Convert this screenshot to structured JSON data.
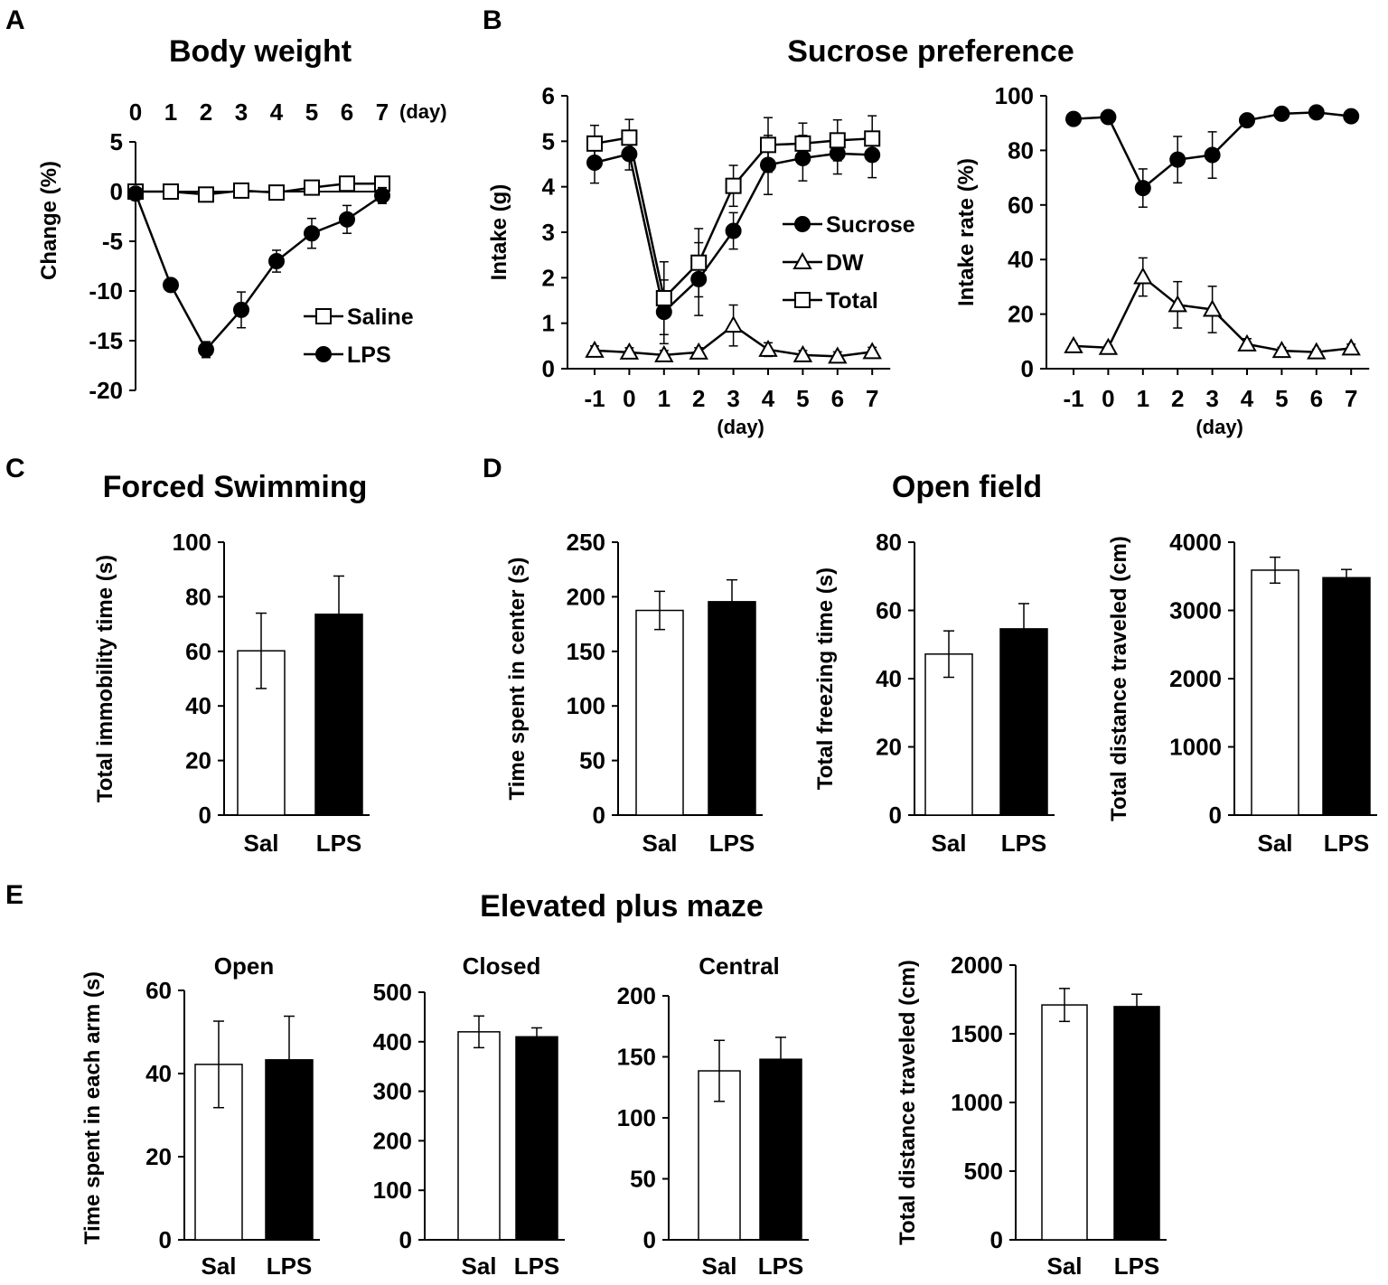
{
  "panel_labels": [
    "A",
    "B",
    "C",
    "D",
    "E"
  ],
  "section_titles": {
    "sucrose": "Sucrose preference",
    "open_field": "Open field",
    "epm": "Elevated plus maze"
  },
  "chart_data": [
    {
      "id": "body_weight",
      "type": "line",
      "title": "Body weight",
      "ylabel": "Change (%)",
      "xlabel": "(day)",
      "x_axis_position": "top",
      "ylim": [
        -20,
        5
      ],
      "yticks": [
        5,
        0,
        -5,
        -10,
        -15,
        -20
      ],
      "x": [
        0,
        1,
        2,
        3,
        4,
        5,
        6,
        7
      ],
      "legend_position": "bottom-right",
      "series": [
        {
          "name": "Saline",
          "marker": "square-open",
          "values": [
            0,
            0,
            -0.3,
            0.1,
            -0.1,
            0.4,
            0.8,
            0.8
          ],
          "errors": [
            0.3,
            0.3,
            0.5,
            0.4,
            0.4,
            0.5,
            0.7,
            0.6
          ]
        },
        {
          "name": "LPS",
          "marker": "circle-filled",
          "values": [
            -0.2,
            -9.4,
            -15.9,
            -11.9,
            -7.0,
            -4.2,
            -2.8,
            -0.4
          ],
          "errors": [
            0.4,
            0.6,
            0.8,
            1.8,
            1.1,
            1.5,
            1.4,
            0.8
          ]
        }
      ]
    },
    {
      "id": "intake",
      "type": "line",
      "ylabel": "Intake (g)",
      "xlabel": "(day)",
      "ylim": [
        0,
        6
      ],
      "yticks": [
        0,
        1,
        2,
        3,
        4,
        5,
        6
      ],
      "x": [
        -1,
        0,
        1,
        2,
        3,
        4,
        5,
        6,
        7
      ],
      "legend_position": "center-right",
      "series": [
        {
          "name": "Sucrose",
          "marker": "circle-filled",
          "values": [
            4.53,
            4.72,
            1.25,
            1.97,
            3.03,
            4.48,
            4.63,
            4.73,
            4.7
          ],
          "errors": [
            0.45,
            0.35,
            0.7,
            0.8,
            0.4,
            0.65,
            0.5,
            0.45,
            0.5
          ]
        },
        {
          "name": "DW",
          "marker": "triangle-open",
          "values": [
            0.4,
            0.36,
            0.3,
            0.36,
            0.95,
            0.42,
            0.3,
            0.27,
            0.37
          ],
          "errors": [
            0.1,
            0.1,
            0.1,
            0.1,
            0.45,
            0.15,
            0.1,
            0.1,
            0.1
          ]
        },
        {
          "name": "Total",
          "marker": "square-open",
          "values": [
            4.95,
            5.08,
            1.55,
            2.33,
            4.02,
            4.92,
            4.95,
            5.02,
            5.06
          ],
          "errors": [
            0.4,
            0.4,
            0.8,
            0.75,
            0.45,
            0.6,
            0.45,
            0.45,
            0.5
          ]
        }
      ]
    },
    {
      "id": "intake_rate",
      "type": "line",
      "ylabel": "Intake rate (%)",
      "xlabel": "(day)",
      "ylim": [
        0,
        100
      ],
      "yticks": [
        0,
        20,
        40,
        60,
        80,
        100
      ],
      "x": [
        -1,
        0,
        1,
        2,
        3,
        4,
        5,
        6,
        7
      ],
      "series": [
        {
          "name": "Sucrose",
          "marker": "circle-filled",
          "values": [
            91.5,
            92.2,
            66.2,
            76.6,
            78.3,
            91,
            93.4,
            93.9,
            92.5
          ],
          "errors": [
            0.8,
            0.8,
            7,
            8.5,
            8.5,
            2,
            1.2,
            1,
            1
          ]
        },
        {
          "name": "DW",
          "marker": "triangle-open",
          "values": [
            8.3,
            7.7,
            33.6,
            23.4,
            21.7,
            9,
            6.6,
            6.1,
            7.5
          ],
          "errors": [
            0.8,
            0.8,
            7,
            8.5,
            8.5,
            2,
            1.2,
            1,
            1.5
          ]
        }
      ]
    },
    {
      "id": "forced_swimming",
      "type": "bar",
      "title": "Forced Swimming",
      "ylabel": "Total immobility time (s)",
      "categories": [
        "Sal",
        "LPS"
      ],
      "values": [
        60.2,
        73.6
      ],
      "errors": [
        13.8,
        14
      ],
      "ylim": [
        0,
        100
      ],
      "yticks": [
        0,
        20,
        40,
        60,
        80,
        100
      ]
    },
    {
      "id": "of_center",
      "type": "bar",
      "ylabel": "Time spent in center (s)",
      "categories": [
        "Sal",
        "LPS"
      ],
      "values": [
        187.5,
        195.5
      ],
      "errors": [
        17.5,
        20
      ],
      "ylim": [
        0,
        250
      ],
      "yticks": [
        0,
        50,
        100,
        150,
        200,
        250
      ]
    },
    {
      "id": "of_freezing",
      "type": "bar",
      "ylabel": "Total freezing time (s)",
      "categories": [
        "Sal",
        "LPS"
      ],
      "values": [
        47.2,
        54.6
      ],
      "errors": [
        6.8,
        7.4
      ],
      "ylim": [
        0,
        80
      ],
      "yticks": [
        0,
        20,
        40,
        60,
        80
      ]
    },
    {
      "id": "of_distance",
      "type": "bar",
      "ylabel": "Total distance traveled (cm)",
      "categories": [
        "Sal",
        "LPS"
      ],
      "values": [
        3590,
        3480
      ],
      "errors": [
        190,
        120
      ],
      "ylim": [
        0,
        4000
      ],
      "yticks": [
        0,
        1000,
        2000,
        3000,
        4000
      ]
    },
    {
      "id": "epm_open",
      "type": "bar",
      "title": "Open",
      "ylabel": "Time spent in each arm (s)",
      "categories": [
        "Sal",
        "LPS"
      ],
      "values": [
        42.2,
        43.3
      ],
      "errors": [
        10.4,
        10.5
      ],
      "ylim": [
        0,
        60
      ],
      "yticks": [
        0,
        20,
        40,
        60
      ]
    },
    {
      "id": "epm_closed",
      "type": "bar",
      "title": "Closed",
      "categories": [
        "Sal",
        "LPS"
      ],
      "values": [
        420,
        410
      ],
      "errors": [
        32,
        18
      ],
      "ylim": [
        0,
        500
      ],
      "yticks": [
        0,
        100,
        200,
        300,
        400,
        500
      ]
    },
    {
      "id": "epm_central",
      "type": "bar",
      "title": "Central",
      "categories": [
        "Sal",
        "LPS"
      ],
      "values": [
        138.5,
        148
      ],
      "errors": [
        25,
        18
      ],
      "ylim": [
        0,
        200
      ],
      "yticks": [
        0,
        50,
        100,
        150,
        200
      ]
    },
    {
      "id": "epm_distance",
      "type": "bar",
      "ylabel": "Total distance traveled (cm)",
      "categories": [
        "Sal",
        "LPS"
      ],
      "values": [
        1710,
        1698
      ],
      "errors": [
        120,
        90
      ],
      "ylim": [
        0,
        2000
      ],
      "yticks": [
        0,
        500,
        1000,
        1500,
        2000
      ]
    }
  ]
}
